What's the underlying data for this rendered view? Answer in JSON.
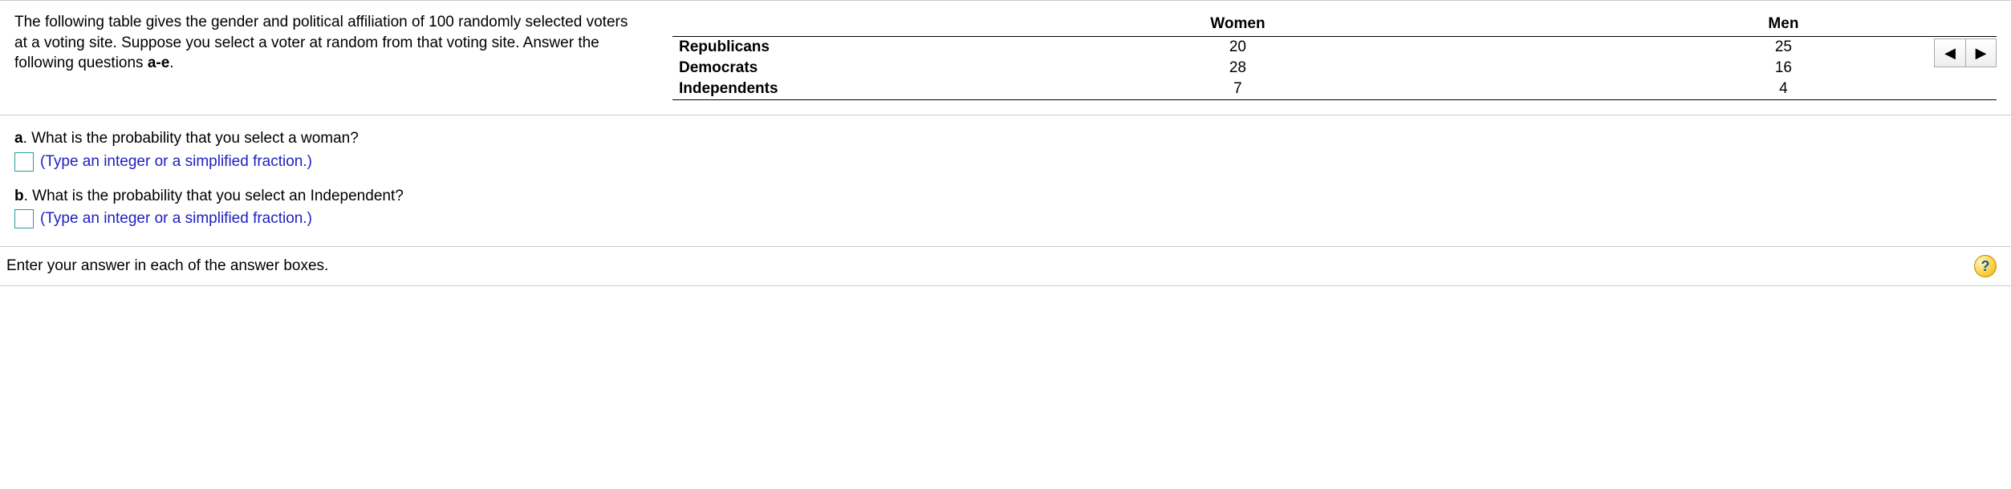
{
  "prompt": {
    "intro": "The following table gives the gender and political affiliation of 100 randomly selected voters at a voting site. Suppose you select a voter at random from that voting site. Answer the following questions ",
    "range_label": "a-e",
    "period": "."
  },
  "table": {
    "columns": [
      "Women",
      "Men"
    ],
    "rows": [
      {
        "label": "Republicans",
        "women": "20",
        "men": "25"
      },
      {
        "label": "Democrats",
        "women": "28",
        "men": "16"
      },
      {
        "label": "Independents",
        "women": "7",
        "men": "4"
      }
    ]
  },
  "questions": {
    "a": {
      "label": "a",
      "text": ". What is the probability that you select a woman?",
      "hint": "(Type an integer or a simplified fraction.)"
    },
    "b": {
      "label": "b",
      "text": ". What is the probability that you select an Independent?",
      "hint": "(Type an integer or a simplified fraction.)"
    }
  },
  "footer": {
    "instruction": "Enter your answer in each of the answer boxes.",
    "help_label": "?",
    "prev_glyph": "◀",
    "next_glyph": "▶"
  },
  "style": {
    "hint_color": "#2020c0",
    "input_border": "#2a9a9a"
  }
}
